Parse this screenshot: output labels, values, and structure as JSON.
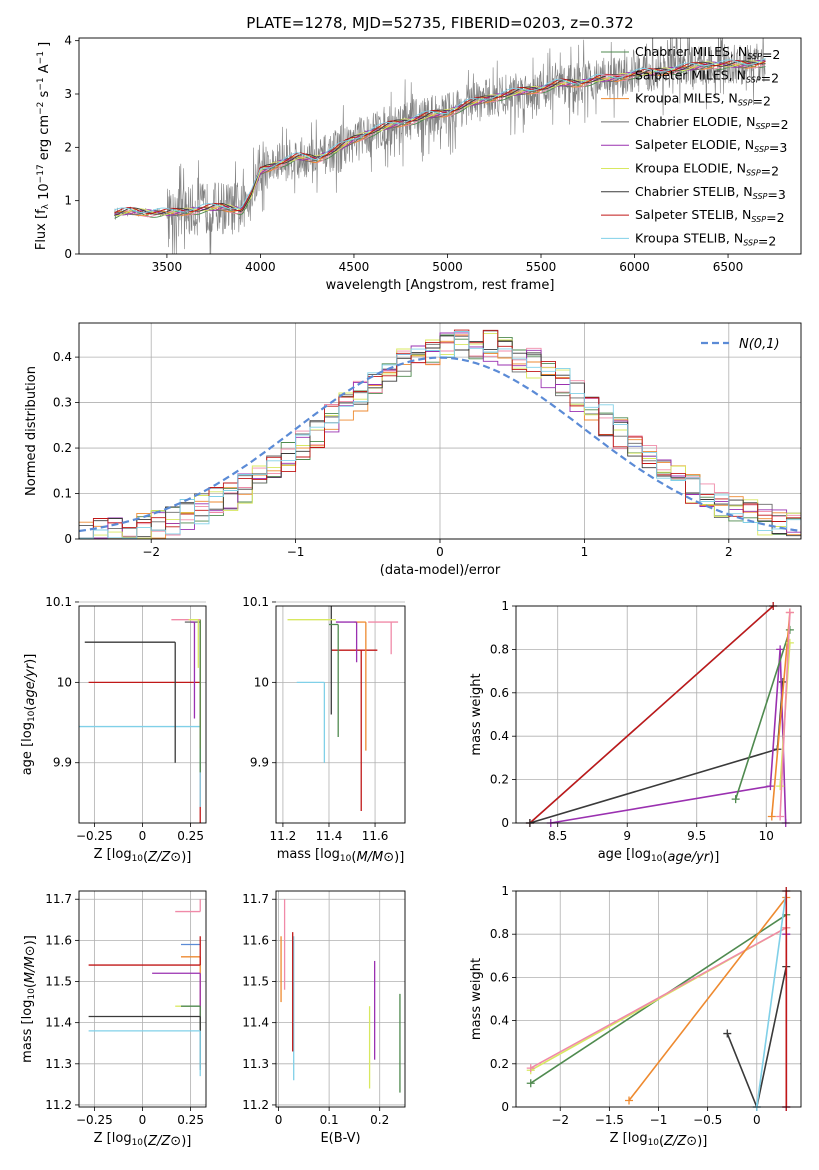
{
  "figure_title": "PLATE=1278, MJD=52735, FIBERID=0203, z=0.372",
  "colors": {
    "chabrier_miles": "#4f8a4f",
    "salpeter_miles": "#f08aa8",
    "kroupa_miles": "#ee8a30",
    "chabrier_elodie": "#6a6a6a",
    "salpeter_elodie": "#9a30b0",
    "kroupa_elodie": "#d8e860",
    "chabrier_stelib": "#3a3a3a",
    "salpeter_stelib": "#c01818",
    "kroupa_stelib": "#80d0e8",
    "normal": "#5b8bd6",
    "data": "#808080"
  },
  "chart_data": [
    {
      "id": "spectrum",
      "type": "line",
      "xlabel": "wavelength [Angstrom, rest frame]",
      "ylabel": "Flux [f_λ 10^-17 erg cm^-2 s^-1 A^-1]",
      "xlim": [
        3030,
        6890
      ],
      "ylim": [
        0,
        4.05
      ],
      "xticks": [
        3500,
        4000,
        4500,
        5000,
        5500,
        6000,
        6500
      ],
      "yticks": [
        0,
        1,
        2,
        3,
        4
      ],
      "legend_position": "top-right",
      "legend": [
        {
          "label": "Chabrier MILES, N_SSP=2",
          "color_key": "chabrier_miles"
        },
        {
          "label": "Salpeter MILES, N_SSP=2",
          "color_key": "salpeter_miles"
        },
        {
          "label": "Kroupa MILES, N_SSP=2",
          "color_key": "kroupa_miles"
        },
        {
          "label": "Chabrier ELODIE, N_SSP=2",
          "color_key": "chabrier_elodie"
        },
        {
          "label": "Salpeter ELODIE, N_SSP=3",
          "color_key": "salpeter_elodie"
        },
        {
          "label": "Kroupa ELODIE, N_SSP=2",
          "color_key": "kroupa_elodie"
        },
        {
          "label": "Chabrier STELIB, N_SSP=3",
          "color_key": "chabrier_stelib"
        },
        {
          "label": "Salpeter STELIB, N_SSP=2",
          "color_key": "salpeter_stelib"
        },
        {
          "label": "Kroupa STELIB, N_SSP=2",
          "color_key": "kroupa_stelib"
        }
      ],
      "model_curve": {
        "x": [
          3220,
          3300,
          3400,
          3500,
          3600,
          3700,
          3800,
          3900,
          3950,
          4000,
          4100,
          4200,
          4300,
          4400,
          4500,
          4600,
          4700,
          4800,
          4900,
          5000,
          5100,
          5200,
          5300,
          5400,
          5500,
          5600,
          5700,
          5800,
          5900,
          6000,
          6100,
          6200,
          6300,
          6400,
          6500,
          6600,
          6700
        ],
        "y": [
          0.75,
          0.8,
          0.78,
          0.77,
          0.8,
          0.85,
          0.88,
          0.82,
          1.1,
          1.55,
          1.7,
          1.82,
          1.78,
          1.95,
          2.15,
          2.3,
          2.42,
          2.5,
          2.6,
          2.65,
          2.8,
          2.9,
          2.98,
          3.05,
          3.1,
          3.2,
          3.2,
          3.28,
          3.3,
          3.38,
          3.4,
          3.45,
          3.5,
          3.55,
          3.55,
          3.55,
          3.6
        ]
      },
      "data_noise_amplitude": 1.1
    },
    {
      "id": "residuals",
      "type": "histogram",
      "xlabel": "(data-model)/error",
      "ylabel": "Normed distribution",
      "xlim": [
        -2.5,
        2.5
      ],
      "ylim": [
        0,
        0.475
      ],
      "xticks": [
        -2,
        -1,
        0,
        1,
        2
      ],
      "yticks": [
        0.0,
        0.1,
        0.2,
        0.3,
        0.4
      ],
      "legend_position": "top-right",
      "normal_label": "N(0,1)",
      "bin_width": 0.1
    },
    {
      "id": "age_vs_Z",
      "type": "scatter",
      "xlabel": "Z [log10(Z/Z⊙)]",
      "ylabel": "age [log10(age/yr)]",
      "xlim": [
        -0.33,
        0.33
      ],
      "ylim": [
        9.825,
        10.095
      ],
      "xticks": [
        -0.25,
        0.0,
        0.25
      ],
      "yticks": [
        9.9,
        10.0,
        10.1
      ],
      "points": [
        {
          "model": "salpeter_stelib",
          "x": 0.3,
          "y": 10.0,
          "xerr": [
            0.58,
            0.0
          ],
          "yerr": [
            0.18,
            0.0
          ]
        },
        {
          "model": "kroupa_stelib",
          "x": 0.3,
          "y": 9.945,
          "xerr": [
            0.63,
            0.0
          ],
          "yerr": [
            0.1,
            0.0
          ]
        },
        {
          "model": "chabrier_stelib",
          "x": 0.17,
          "y": 10.05,
          "xerr": [
            0.47,
            0.0
          ],
          "yerr": [
            0.15,
            0.0
          ]
        },
        {
          "model": "chabrier_elodie",
          "x": 0.3,
          "y": 10.075,
          "xerr": [
            0.08,
            0.0
          ],
          "yerr": [
            0.1,
            0.0
          ]
        },
        {
          "model": "salpeter_elodie",
          "x": 0.27,
          "y": 10.075,
          "xerr": [
            0.02,
            0.0
          ],
          "yerr": [
            0.12,
            0.0
          ]
        },
        {
          "model": "kroupa_miles",
          "x": 0.3,
          "y": 10.078,
          "xerr": [
            0.06,
            0.0
          ],
          "yerr": [
            0.16,
            0.0
          ]
        },
        {
          "model": "chabrier_miles",
          "x": 0.3,
          "y": 10.078,
          "xerr": [
            0.0,
            0.0
          ],
          "yerr": [
            0.19,
            0.0
          ]
        },
        {
          "model": "salpeter_miles",
          "x": 0.3,
          "y": 10.078,
          "xerr": [
            0.15,
            0.0
          ],
          "yerr": [
            0.0,
            0.0
          ]
        },
        {
          "model": "kroupa_elodie",
          "x": 0.29,
          "y": 10.078,
          "xerr": [
            0.05,
            0.0
          ],
          "yerr": [
            0.06,
            0.0
          ]
        }
      ]
    },
    {
      "id": "age_vs_mass",
      "type": "scatter",
      "xlabel": "mass [log10(M/M⊙)]",
      "ylabel": "",
      "xlim": [
        11.17,
        11.73
      ],
      "ylim": [
        9.825,
        10.095
      ],
      "xticks": [
        11.2,
        11.4,
        11.6
      ],
      "yticks": [
        9.9,
        10.0,
        10.1
      ],
      "points": [
        {
          "model": "salpeter_stelib",
          "x": 11.54,
          "y": 10.04,
          "xerr": [
            0.13,
            0.07
          ],
          "yerr": [
            0.2,
            0.0
          ]
        },
        {
          "model": "kroupa_stelib",
          "x": 11.38,
          "y": 10.0,
          "xerr": [
            0.12,
            0.0
          ],
          "yerr": [
            0.1,
            0.0
          ]
        },
        {
          "model": "chabrier_stelib",
          "x": 11.41,
          "y": 10.1,
          "xerr": [
            0.06,
            0.09
          ],
          "yerr": [
            0.14,
            0.0
          ]
        },
        {
          "model": "kroupa_miles",
          "x": 11.56,
          "y": 10.075,
          "xerr": [
            0.05,
            0.0
          ],
          "yerr": [
            0.16,
            0.0
          ]
        },
        {
          "model": "salpeter_miles",
          "x": 11.67,
          "y": 10.075,
          "xerr": [
            0.1,
            0.03
          ],
          "yerr": [
            0.04,
            0.0
          ]
        },
        {
          "model": "chabrier_miles",
          "x": 11.44,
          "y": 10.072,
          "xerr": [
            0.04,
            0.0
          ],
          "yerr": [
            0.14,
            0.0
          ]
        },
        {
          "model": "kroupa_elodie",
          "x": 11.43,
          "y": 10.078,
          "xerr": [
            0.21,
            0.0
          ],
          "yerr": [
            0.0,
            0.0
          ]
        },
        {
          "model": "salpeter_elodie",
          "x": 11.52,
          "y": 10.075,
          "xerr": [
            0.09,
            0.0
          ],
          "yerr": [
            0.05,
            0.0
          ]
        }
      ]
    },
    {
      "id": "weight_vs_age",
      "type": "line",
      "xlabel": "age [log10(age/yr)]",
      "ylabel": "mass weight",
      "xlim": [
        8.2,
        10.25
      ],
      "ylim": [
        0,
        1.0
      ],
      "xticks": [
        8.5,
        9.0,
        9.5,
        10.0
      ],
      "yticks": [
        0.0,
        0.2,
        0.4,
        0.6,
        0.8,
        1.0
      ],
      "series": [
        {
          "model": "kroupa_stelib",
          "x": [
            8.3,
            10.05
          ],
          "y": [
            0.0,
            1.0
          ]
        },
        {
          "model": "salpeter_stelib",
          "x": [
            8.3,
            10.05
          ],
          "y": [
            0.0,
            1.0
          ]
        },
        {
          "model": "chabrier_stelib",
          "x": [
            8.3,
            10.08,
            10.12
          ],
          "y": [
            0.0,
            0.34,
            0.65
          ]
        },
        {
          "model": "salpeter_elodie",
          "x": [
            8.45,
            10.03,
            10.1,
            10.14
          ],
          "y": [
            0.0,
            0.17,
            0.8,
            0.0
          ]
        },
        {
          "model": "chabrier_miles",
          "x": [
            9.78,
            10.17
          ],
          "y": [
            0.11,
            0.89
          ]
        },
        {
          "model": "kroupa_miles",
          "x": [
            10.04,
            10.17
          ],
          "y": [
            0.03,
            0.97
          ]
        },
        {
          "model": "kroupa_elodie",
          "x": [
            10.1,
            10.17
          ],
          "y": [
            0.17,
            0.83
          ]
        },
        {
          "model": "salpeter_miles",
          "x": [
            10.1,
            10.17
          ],
          "y": [
            0.03,
            0.97
          ]
        }
      ]
    },
    {
      "id": "mass_vs_Z",
      "type": "scatter",
      "xlabel": "Z [log10(Z/Z⊙)]",
      "ylabel": "mass [log10(M/M⊙)]",
      "xlim": [
        -0.33,
        0.33
      ],
      "ylim": [
        11.195,
        11.72
      ],
      "xticks": [
        -0.25,
        0.0,
        0.25
      ],
      "yticks": [
        11.2,
        11.3,
        11.4,
        11.5,
        11.6,
        11.7
      ],
      "points": [
        {
          "model": "salpeter_miles",
          "x": 0.3,
          "y": 11.67,
          "xerr": [
            0.13,
            0.0
          ],
          "yerr": [
            0.0,
            0.03
          ]
        },
        {
          "model": "normal",
          "x": 0.3,
          "y": 11.59,
          "xerr": [
            0.1,
            0.0
          ],
          "yerr": [
            0.0,
            0.0
          ]
        },
        {
          "model": "kroupa_miles",
          "x": 0.3,
          "y": 11.56,
          "xerr": [
            0.1,
            0.0
          ],
          "yerr": [
            0.19,
            0.0
          ]
        },
        {
          "model": "salpeter_stelib",
          "x": 0.3,
          "y": 11.54,
          "xerr": [
            0.58,
            0.0
          ],
          "yerr": [
            0.0,
            0.07
          ]
        },
        {
          "model": "salpeter_elodie",
          "x": 0.3,
          "y": 11.52,
          "xerr": [
            0.25,
            0.0
          ],
          "yerr": [
            0.2,
            0.0
          ]
        },
        {
          "model": "kroupa_elodie",
          "x": 0.25,
          "y": 11.44,
          "xerr": [
            0.08,
            0.0
          ],
          "yerr": [
            0.0,
            0.0
          ]
        },
        {
          "model": "chabrier_miles",
          "x": 0.3,
          "y": 11.44,
          "xerr": [
            0.1,
            0.0
          ],
          "yerr": [
            0.15,
            0.0
          ]
        },
        {
          "model": "chabrier_stelib",
          "x": 0.3,
          "y": 11.415,
          "xerr": [
            0.58,
            0.0
          ],
          "yerr": [
            0.13,
            0.0
          ]
        },
        {
          "model": "kroupa_stelib",
          "x": 0.3,
          "y": 11.38,
          "xerr": [
            0.58,
            0.0
          ],
          "yerr": [
            0.11,
            0.0
          ]
        }
      ]
    },
    {
      "id": "mass_vs_ebv",
      "type": "scatter",
      "xlabel": "E(B-V)",
      "ylabel": "",
      "xlim": [
        -0.005,
        0.25
      ],
      "ylim": [
        11.195,
        11.72
      ],
      "xticks": [
        0.0,
        0.1,
        0.2
      ],
      "yticks": [
        11.2,
        11.3,
        11.4,
        11.5,
        11.6,
        11.7
      ],
      "points": [
        {
          "model": "salpeter_miles",
          "x": 0.012,
          "y": 11.6,
          "xerr": [
            0,
            0
          ],
          "yerr": [
            0.12,
            0.1
          ]
        },
        {
          "model": "kroupa_miles",
          "x": 0.005,
          "y": 11.55,
          "xerr": [
            0,
            0
          ],
          "yerr": [
            0.1,
            0.06
          ]
        },
        {
          "model": "kroupa_stelib",
          "x": 0.03,
          "y": 11.4,
          "xerr": [
            0,
            0
          ],
          "yerr": [
            0.14,
            0.21
          ]
        },
        {
          "model": "salpeter_stelib",
          "x": 0.028,
          "y": 11.47,
          "xerr": [
            0,
            0
          ],
          "yerr": [
            0.14,
            0.15
          ]
        },
        {
          "model": "salpeter_elodie",
          "x": 0.19,
          "y": 11.43,
          "xerr": [
            0,
            0
          ],
          "yerr": [
            0.12,
            0.12
          ]
        },
        {
          "model": "kroupa_elodie",
          "x": 0.18,
          "y": 11.35,
          "xerr": [
            0,
            0
          ],
          "yerr": [
            0.11,
            0.09
          ]
        },
        {
          "model": "chabrier_miles",
          "x": 0.24,
          "y": 11.35,
          "xerr": [
            0,
            0
          ],
          "yerr": [
            0.12,
            0.12
          ]
        }
      ]
    },
    {
      "id": "weight_vs_Z",
      "type": "line",
      "xlabel": "Z [log10(Z/Z⊙)]",
      "ylabel": "mass weight",
      "xlim": [
        -2.45,
        0.45
      ],
      "ylim": [
        0,
        1.0
      ],
      "xticks": [
        -2.0,
        -1.5,
        -1.0,
        -0.5,
        0.0
      ],
      "yticks": [
        0.0,
        0.2,
        0.4,
        0.6,
        0.8,
        1.0
      ],
      "series": [
        {
          "model": "chabrier_miles",
          "x": [
            -2.3,
            0.3
          ],
          "y": [
            0.11,
            0.89
          ]
        },
        {
          "model": "kroupa_elodie",
          "x": [
            -2.3,
            0.3
          ],
          "y": [
            0.17,
            0.83
          ]
        },
        {
          "model": "salpeter_miles",
          "x": [
            -2.3,
            0.3
          ],
          "y": [
            0.18,
            0.83
          ]
        },
        {
          "model": "kroupa_miles",
          "x": [
            -1.3,
            0.3
          ],
          "y": [
            0.03,
            0.97
          ]
        },
        {
          "model": "chabrier_stelib",
          "x": [
            -0.3,
            0.0,
            0.3
          ],
          "y": [
            0.34,
            0.0,
            0.65
          ]
        },
        {
          "model": "kroupa_stelib",
          "x": [
            0.0,
            0.3
          ],
          "y": [
            0.0,
            1.0
          ]
        },
        {
          "model": "salpeter_elodie",
          "x": [
            0.3,
            0.3
          ],
          "y": [
            0.0,
            0.8
          ]
        },
        {
          "model": "salpeter_stelib",
          "x": [
            0.3,
            0.3
          ],
          "y": [
            0.0,
            1.0
          ]
        }
      ]
    }
  ]
}
